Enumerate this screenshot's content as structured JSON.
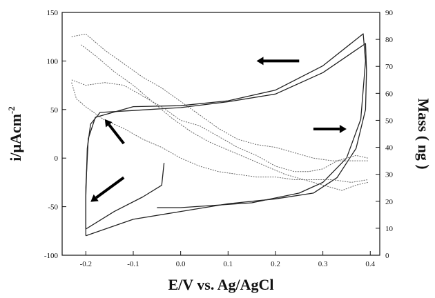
{
  "chart_data": {
    "type": "line",
    "xlabel": "E/V vs. Ag/AgCl",
    "ylabel_left": "i/μAcm",
    "ylabel_left_superscript": "-2",
    "ylabel_right": "Mass ( ng )",
    "xlim": [
      -0.25,
      0.42
    ],
    "ylim_left": [
      -100,
      150
    ],
    "ylim_right": [
      0,
      90
    ],
    "x_ticks": [
      -0.2,
      -0.1,
      0.0,
      0.1,
      0.2,
      0.3,
      0.4
    ],
    "x_tick_labels": [
      "-0.2",
      "-0.1",
      "0.0",
      "0.1",
      "0.2",
      "0.3",
      "0.4"
    ],
    "y_left_ticks": [
      -100,
      -50,
      0,
      50,
      100,
      150
    ],
    "y_left_tick_labels": [
      "-100",
      "-50",
      "0",
      "50",
      "100",
      "150"
    ],
    "y_right_ticks": [
      0,
      10,
      20,
      30,
      40,
      50,
      60,
      70,
      80,
      90
    ],
    "y_right_tick_labels": [
      "0",
      "10",
      "20",
      "30",
      "40",
      "50",
      "60",
      "70",
      "80",
      "90"
    ],
    "grid": false,
    "legend": "none",
    "series": [
      {
        "axis": "left",
        "style": "solid",
        "color": "#222222",
        "points": [
          [
            -0.035,
            -5
          ],
          [
            -0.04,
            -28
          ],
          [
            -0.08,
            -40
          ],
          [
            -0.14,
            -55
          ],
          [
            -0.2,
            -73
          ],
          [
            -0.2,
            -30
          ],
          [
            -0.195,
            20
          ],
          [
            -0.18,
            42
          ],
          [
            -0.1,
            53
          ],
          [
            0.0,
            54
          ],
          [
            0.1,
            59
          ],
          [
            0.2,
            70
          ],
          [
            0.3,
            95
          ],
          [
            0.385,
            128
          ],
          [
            0.39,
            100
          ],
          [
            0.38,
            40
          ],
          [
            0.35,
            0
          ],
          [
            0.3,
            -25
          ],
          [
            0.25,
            -36
          ],
          [
            0.15,
            -46
          ],
          [
            0.0,
            -51
          ],
          [
            -0.05,
            -51
          ]
        ]
      },
      {
        "axis": "left",
        "style": "solid",
        "color": "#222222",
        "points": [
          [
            -0.2,
            -80
          ],
          [
            -0.2,
            -40
          ],
          [
            -0.197,
            10
          ],
          [
            -0.19,
            35
          ],
          [
            -0.17,
            47
          ],
          [
            -0.1,
            49
          ],
          [
            0.0,
            52
          ],
          [
            0.1,
            58
          ],
          [
            0.2,
            66
          ],
          [
            0.3,
            88
          ],
          [
            0.39,
            118
          ],
          [
            0.392,
            90
          ],
          [
            0.39,
            50
          ],
          [
            0.37,
            10
          ],
          [
            0.33,
            -20
          ],
          [
            0.28,
            -36
          ],
          [
            0.2,
            -42
          ],
          [
            0.1,
            -47
          ],
          [
            0.0,
            -55
          ],
          [
            -0.1,
            -63
          ],
          [
            -0.2,
            -80
          ]
        ]
      },
      {
        "axis": "right",
        "style": "dotted",
        "color": "#666666",
        "points": [
          [
            -0.23,
            81
          ],
          [
            -0.2,
            82
          ],
          [
            -0.16,
            76
          ],
          [
            -0.12,
            71
          ],
          [
            -0.08,
            66
          ],
          [
            -0.04,
            62
          ],
          [
            0.0,
            57
          ],
          [
            0.04,
            52
          ],
          [
            0.08,
            47
          ],
          [
            0.12,
            43
          ],
          [
            0.16,
            41
          ],
          [
            0.2,
            40
          ],
          [
            0.24,
            38
          ],
          [
            0.28,
            36
          ],
          [
            0.32,
            35
          ],
          [
            0.36,
            35
          ],
          [
            0.395,
            35
          ]
        ]
      },
      {
        "axis": "right",
        "style": "dotted",
        "color": "#666666",
        "points": [
          [
            0.395,
            36
          ],
          [
            0.37,
            37
          ],
          [
            0.33,
            35
          ],
          [
            0.3,
            32
          ],
          [
            0.27,
            31
          ],
          [
            0.24,
            31
          ],
          [
            0.2,
            33
          ],
          [
            0.16,
            37
          ],
          [
            0.12,
            40
          ],
          [
            0.08,
            44
          ],
          [
            0.04,
            48
          ],
          [
            0.0,
            50
          ],
          [
            -0.04,
            55
          ],
          [
            -0.08,
            59
          ],
          [
            -0.12,
            63
          ],
          [
            -0.16,
            64
          ],
          [
            -0.2,
            63
          ],
          [
            -0.23,
            65
          ]
        ]
      },
      {
        "axis": "right",
        "style": "dotted",
        "color": "#666666",
        "points": [
          [
            -0.23,
            64
          ],
          [
            -0.22,
            58
          ],
          [
            -0.2,
            55
          ],
          [
            -0.16,
            50
          ],
          [
            -0.12,
            47
          ],
          [
            -0.08,
            43
          ],
          [
            -0.04,
            40
          ],
          [
            0.0,
            36
          ],
          [
            0.04,
            33
          ],
          [
            0.08,
            31
          ],
          [
            0.12,
            30
          ],
          [
            0.16,
            29
          ],
          [
            0.2,
            29
          ],
          [
            0.24,
            28
          ],
          [
            0.28,
            28
          ],
          [
            0.32,
            28
          ],
          [
            0.36,
            27
          ],
          [
            0.395,
            28
          ]
        ]
      },
      {
        "axis": "right",
        "style": "dotted",
        "color": "#666666",
        "points": [
          [
            0.395,
            27
          ],
          [
            0.37,
            26
          ],
          [
            0.34,
            24
          ],
          [
            0.3,
            26
          ],
          [
            0.26,
            28
          ],
          [
            0.22,
            30
          ],
          [
            0.18,
            33
          ],
          [
            0.14,
            36
          ],
          [
            0.1,
            39
          ],
          [
            0.06,
            42
          ],
          [
            0.02,
            46
          ],
          [
            -0.02,
            51
          ],
          [
            -0.06,
            57
          ],
          [
            -0.1,
            63
          ],
          [
            -0.14,
            68
          ],
          [
            -0.18,
            74
          ],
          [
            -0.21,
            78
          ]
        ]
      }
    ],
    "arrows": [
      {
        "from": [
          -0.12,
          -20
        ],
        "to": [
          -0.19,
          -45
        ]
      },
      {
        "from": [
          -0.12,
          15
        ],
        "to": [
          -0.16,
          40
        ]
      },
      {
        "from": [
          0.25,
          100
        ],
        "to": [
          0.16,
          100
        ]
      },
      {
        "from": [
          0.28,
          30
        ],
        "to": [
          0.35,
          30
        ]
      }
    ]
  }
}
